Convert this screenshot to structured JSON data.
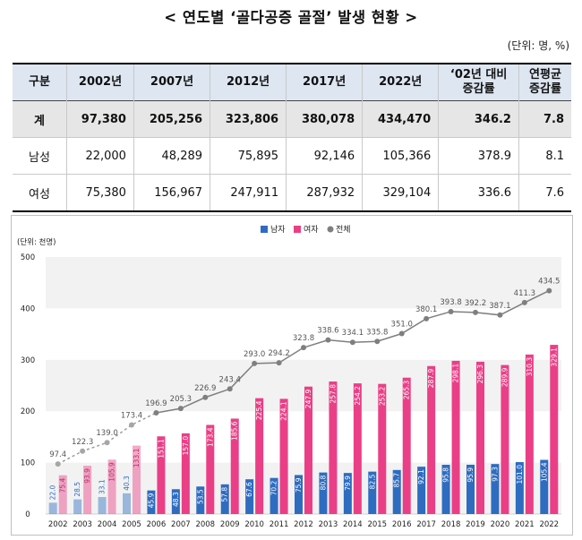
{
  "title": "< 연도별 ‘골다공증 골절’ 발생 현황 >",
  "unit_note": "(단위: 명, %)",
  "table": {
    "headers": [
      "구분",
      "2002년",
      "2007년",
      "2012년",
      "2017년",
      "2022년",
      "‘02년 대비\n증감률",
      "연평균\n증감률"
    ],
    "rows": [
      {
        "label": "계",
        "values": [
          "97,380",
          "205,256",
          "323,806",
          "380,078",
          "434,470",
          "346.2",
          "7.8"
        ]
      },
      {
        "label": "남성",
        "values": [
          "22,000",
          "48,289",
          "75,895",
          "92,146",
          "105,366",
          "378.9",
          "8.1"
        ]
      },
      {
        "label": "여성",
        "values": [
          "75,380",
          "156,967",
          "247,911",
          "287,932",
          "329,104",
          "336.6",
          "7.6"
        ]
      }
    ]
  },
  "chart_data": {
    "type": "bar",
    "unit_label": "(단위: 천명)",
    "categories": [
      "2002",
      "2003",
      "2004",
      "2005",
      "2006",
      "2007",
      "2008",
      "2009",
      "2010",
      "2011",
      "2012",
      "2013",
      "2014",
      "2015",
      "2016",
      "2017",
      "2018",
      "2019",
      "2020",
      "2021",
      "2022"
    ],
    "series": [
      {
        "name": "남자",
        "type": "bar",
        "color": "#2e6cc0",
        "values": [
          22.0,
          28.5,
          33.1,
          40.3,
          45.9,
          48.3,
          53.5,
          57.8,
          67.6,
          70.2,
          75.9,
          80.8,
          79.9,
          82.5,
          85.7,
          92.1,
          95.8,
          95.9,
          97.3,
          101.0,
          105.4
        ]
      },
      {
        "name": "여자",
        "type": "bar",
        "color": "#ea3f86",
        "values": [
          75.4,
          93.9,
          105.9,
          133.1,
          151.1,
          157.0,
          173.4,
          185.6,
          225.4,
          224.1,
          247.9,
          257.8,
          254.2,
          253.2,
          265.3,
          287.9,
          298.1,
          296.3,
          289.9,
          310.3,
          329.1
        ]
      },
      {
        "name": "전체",
        "type": "line",
        "color": "#7f7f7f",
        "values": [
          97.4,
          122.3,
          139.0,
          173.4,
          196.9,
          205.3,
          226.9,
          243.4,
          293.0,
          294.2,
          323.8,
          338.6,
          334.1,
          335.8,
          351.0,
          380.1,
          393.8,
          392.2,
          387.1,
          411.3,
          434.5
        ]
      }
    ],
    "ylim": [
      0,
      500
    ],
    "yticks": [
      0,
      100,
      200,
      300,
      400,
      500
    ],
    "legend_position": "top-center",
    "estimated_years": [
      "2002",
      "2003",
      "2004",
      "2005"
    ],
    "band_color": "#f2f2f2"
  }
}
